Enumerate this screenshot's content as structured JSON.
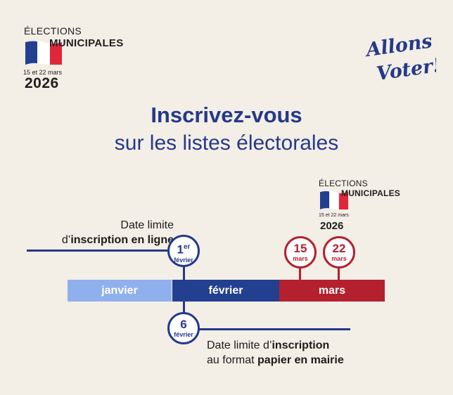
{
  "header_logo": {
    "elections": "ÉLECTIONS",
    "municipales": "MUNICIPALES",
    "dates": "15 et 22 mars",
    "year": "2026"
  },
  "slogan": {
    "line1": "Allons",
    "line2": "Voter!"
  },
  "title": {
    "main": "Inscrivez-vous",
    "sub": "sur les listes électorales"
  },
  "march_logo": {
    "elections": "ÉLECTIONS",
    "municipales": "MUNICIPALES",
    "dates": "15 et 22 mars",
    "year": "2026"
  },
  "timeline": {
    "months": [
      "janvier",
      "février",
      "mars"
    ]
  },
  "deadline_online": {
    "line1": "Date limite",
    "prefix": "d’",
    "bold": "inscription en ligne",
    "day": "1",
    "day_sup": "er",
    "month": "février"
  },
  "deadline_paper": {
    "text1": "Date limite d’",
    "bold1": "inscription",
    "text2": "au format ",
    "bold2": "papier en mairie",
    "day": "6",
    "month": "février"
  },
  "election_days": [
    {
      "day": "15",
      "month": "mars"
    },
    {
      "day": "22",
      "month": "mars"
    }
  ],
  "colors": {
    "background": "#f3eee6",
    "blue": "#24398a",
    "light_blue": "#8fb0ec",
    "red": "#b5202e"
  }
}
